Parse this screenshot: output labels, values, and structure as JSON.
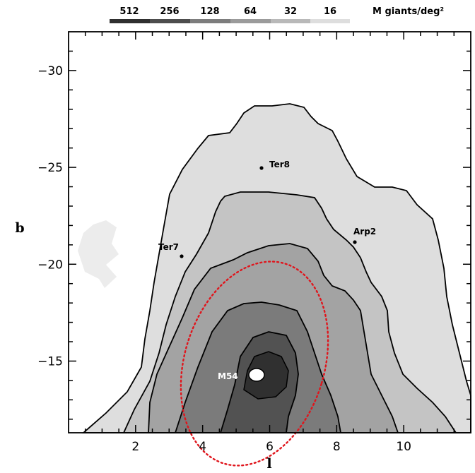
{
  "chart_data": {
    "type": "contour",
    "xlabel": "l",
    "ylabel": "b",
    "xlim": [
      0,
      12
    ],
    "ylim": [
      -11.3,
      -32
    ],
    "xticks": [
      2,
      4,
      6,
      8,
      10
    ],
    "yticks": [
      -15,
      -20,
      -25,
      -30
    ],
    "colorbar": {
      "unit": "M giants/deg²",
      "levels": [
        {
          "label": "512",
          "color": "#2f2f2f"
        },
        {
          "label": "256",
          "color": "#4d4d4d"
        },
        {
          "label": "128",
          "color": "#7d7d7d"
        },
        {
          "label": "64",
          "color": "#9b9b9b"
        },
        {
          "label": "32",
          "color": "#b9b9b9"
        },
        {
          "label": "16",
          "color": "#dedede"
        }
      ]
    },
    "annotations": [
      {
        "label": "Ter8",
        "l": 5.8,
        "b": -24.5
      },
      {
        "label": "Arp2",
        "l": 8.6,
        "b": -20.8
      },
      {
        "label": "Ter7",
        "l": 3.4,
        "b": -20.1
      },
      {
        "label": "M54",
        "l": 5.6,
        "b": -14.1
      }
    ],
    "ellipse": {
      "center_l": 5.6,
      "center_b": -14.8,
      "color": "#e0151c",
      "style": "dotted"
    }
  }
}
